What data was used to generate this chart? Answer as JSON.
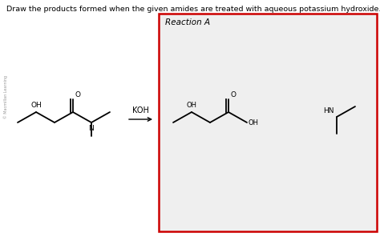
{
  "title_text": "Draw the products formed when the given amides are treated with aqueous potassium hydroxide.",
  "reaction_label": "Reaction A",
  "background_color": "#ffffff",
  "panel_bg": "#efefef",
  "panel_border_color": "#cc0000",
  "text_color": "#000000",
  "koh_label": "KOH",
  "watermark": "© Macmillan Learning",
  "font_size_title": 6.8,
  "font_size_label": 7.5,
  "font_size_atom": 6.5,
  "font_size_koh": 7,
  "lw": 1.3
}
